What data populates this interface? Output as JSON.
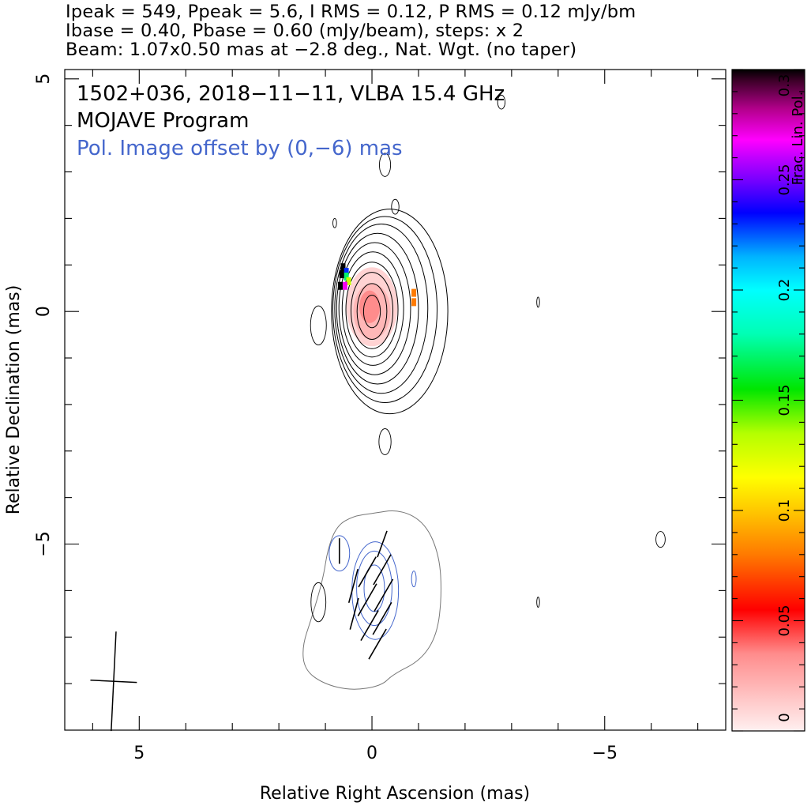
{
  "header": {
    "line1": "Ipeak = 549, Ppeak = 5.6, I RMS = 0.12, P RMS = 0.12 mJy/bm",
    "line2": "Ibase = 0.40, Pbase = 0.60 (mJy/beam), steps: x 2",
    "line3": "Beam: 1.07x0.50 mas at −2.8 deg., Nat. Wgt. (no taper)"
  },
  "chart_data": {
    "type": "contour",
    "title": "1502+036, 2018−11−11, VLBA 15.4 GHz",
    "subtitle": "MOJAVE Program",
    "annotation": "Pol. Image offset by (0,−6) mas",
    "xlabel": "Relative Right Ascension (mas)",
    "ylabel": "Relative Declination (mas)",
    "xlim": [
      6.6,
      -7.6
    ],
    "ylim": [
      -9.0,
      5.2
    ],
    "x_ticks": [
      5,
      0,
      -5
    ],
    "x_tick_labels": [
      "5",
      "0",
      "−5"
    ],
    "y_ticks": [
      5,
      0,
      -5
    ],
    "y_tick_labels": [
      "5",
      "0",
      "−5"
    ],
    "x_minor_ticks": [
      6,
      4,
      3,
      2,
      1,
      -1,
      -2,
      -3,
      -4,
      -6,
      -7
    ],
    "y_minor_ticks": [
      4,
      3,
      2,
      1,
      -1,
      -2,
      -3,
      -4,
      -6,
      -7,
      -8
    ],
    "stokes_I": {
      "peak_mJy_per_beam": 549,
      "rms": 0.12,
      "base_level": 0.4,
      "level_step": 2,
      "center": [
        0.0,
        0.0
      ],
      "contours": [
        {
          "x": 0.0,
          "y": 0.0,
          "rx": 0.18,
          "ry": 0.35
        },
        {
          "x": 0.0,
          "y": 0.0,
          "rx": 0.32,
          "ry": 0.6
        },
        {
          "x": 0.0,
          "y": 0.02,
          "rx": 0.45,
          "ry": 0.82
        },
        {
          "x": 0.0,
          "y": 0.04,
          "rx": 0.56,
          "ry": 1.02
        },
        {
          "x": -0.02,
          "y": 0.06,
          "rx": 0.66,
          "ry": 1.22
        },
        {
          "x": -0.06,
          "y": 0.06,
          "rx": 0.77,
          "ry": 1.42
        },
        {
          "x": -0.12,
          "y": 0.06,
          "rx": 0.88,
          "ry": 1.62
        },
        {
          "x": -0.2,
          "y": 0.06,
          "rx": 1.0,
          "ry": 1.82
        },
        {
          "x": -0.28,
          "y": 0.04,
          "rx": 1.12,
          "ry": 2.0
        },
        {
          "x": -0.38,
          "y": 0.0,
          "rx": 1.25,
          "ry": 2.2
        }
      ],
      "noise_islands": [
        {
          "x": 1.15,
          "y": -0.3,
          "rx": 0.17,
          "ry": 0.42
        },
        {
          "x": -0.28,
          "y": 3.15,
          "rx": 0.12,
          "ry": 0.25
        },
        {
          "x": -0.5,
          "y": 2.25,
          "rx": 0.08,
          "ry": 0.16
        },
        {
          "x": 0.8,
          "y": 1.9,
          "rx": 0.04,
          "ry": 0.1
        },
        {
          "x": -0.28,
          "y": -2.8,
          "rx": 0.13,
          "ry": 0.28
        },
        {
          "x": -3.57,
          "y": 0.2,
          "rx": 0.03,
          "ry": 0.11
        },
        {
          "x": -3.57,
          "y": -6.25,
          "rx": 0.03,
          "ry": 0.11
        },
        {
          "x": -6.2,
          "y": -4.9,
          "rx": 0.1,
          "ry": 0.17
        },
        {
          "x": -2.78,
          "y": 4.5,
          "rx": 0.08,
          "ry": 0.15
        },
        {
          "x": 1.15,
          "y": -6.25,
          "rx": 0.16,
          "ry": 0.42
        }
      ]
    },
    "polarization": {
      "peak_mJy_per_beam": 5.6,
      "rms": 0.12,
      "base_level": 0.6,
      "offset_mas": [
        0,
        -6
      ],
      "total_intensity_outline": [
        [
          0.05,
          -4.35
        ],
        [
          -0.6,
          -4.25
        ],
        [
          -1.15,
          -4.55
        ],
        [
          -1.45,
          -5.25
        ],
        [
          -1.5,
          -6.1
        ],
        [
          -1.4,
          -6.95
        ],
        [
          -1.05,
          -7.5
        ],
        [
          -0.45,
          -7.8
        ],
        [
          -0.2,
          -8.05
        ],
        [
          0.45,
          -8.15
        ],
        [
          1.05,
          -8.0
        ],
        [
          1.45,
          -7.7
        ],
        [
          1.5,
          -7.2
        ],
        [
          1.3,
          -6.6
        ],
        [
          1.05,
          -5.75
        ],
        [
          0.95,
          -5.1
        ],
        [
          0.75,
          -4.6
        ],
        [
          0.4,
          -4.4
        ]
      ],
      "contours": [
        {
          "x": -0.05,
          "y": -5.95,
          "rx": 0.22,
          "ry": 0.5
        },
        {
          "x": -0.05,
          "y": -5.95,
          "rx": 0.38,
          "ry": 0.8
        },
        {
          "x": -0.07,
          "y": -6.0,
          "rx": 0.5,
          "ry": 1.05
        },
        {
          "x": 0.7,
          "y": -5.2,
          "rx": 0.22,
          "ry": 0.38
        },
        {
          "x": -0.9,
          "y": -5.75,
          "rx": 0.05,
          "ry": 0.17
        }
      ],
      "evpa_vectors": [
        {
          "x": 0.7,
          "y": -5.15,
          "len": 0.55,
          "angle_deg": 0
        },
        {
          "x": 0.4,
          "y": -5.9,
          "len": 0.75,
          "angle_deg": -15
        },
        {
          "x": 0.38,
          "y": -6.5,
          "len": 0.7,
          "angle_deg": -15
        },
        {
          "x": 0.1,
          "y": -5.6,
          "len": 0.75,
          "angle_deg": -30
        },
        {
          "x": 0.1,
          "y": -6.2,
          "len": 0.8,
          "angle_deg": -30
        },
        {
          "x": 0.05,
          "y": -6.75,
          "len": 0.75,
          "angle_deg": -30
        },
        {
          "x": -0.22,
          "y": -5.55,
          "len": 0.75,
          "angle_deg": -30
        },
        {
          "x": -0.25,
          "y": -6.1,
          "len": 0.8,
          "angle_deg": -30
        },
        {
          "x": -0.22,
          "y": -6.6,
          "len": 0.8,
          "angle_deg": -30
        },
        {
          "x": -0.22,
          "y": -5.0,
          "len": 0.6,
          "angle_deg": -20
        },
        {
          "x": -0.12,
          "y": -7.15,
          "len": 0.75,
          "angle_deg": -30
        }
      ]
    },
    "frac_pol_map": [
      {
        "x": 0.0,
        "y": 0.1,
        "rx": 0.55,
        "ry": 0.85,
        "value": 0.01
      },
      {
        "x": 0.0,
        "y": 0.0,
        "rx": 0.4,
        "ry": 0.6,
        "value": 0.02
      },
      {
        "x": 0.05,
        "y": 0.1,
        "rx": 0.22,
        "ry": 0.35,
        "value": 0.035
      }
    ],
    "frac_pol_pixels": [
      {
        "x": 0.62,
        "y": 0.95,
        "value": 0.3
      },
      {
        "x": 0.55,
        "y": 0.85,
        "value": 0.23
      },
      {
        "x": 0.55,
        "y": 0.75,
        "value": 0.17
      },
      {
        "x": 0.5,
        "y": 0.65,
        "value": 0.13
      },
      {
        "x": 0.58,
        "y": 0.55,
        "value": 0.27
      },
      {
        "x": 0.68,
        "y": 0.55,
        "value": 0.3
      },
      {
        "x": 0.65,
        "y": 0.8,
        "value": 0.3
      },
      {
        "x": -0.9,
        "y": 0.4,
        "value": 0.08
      },
      {
        "x": -0.9,
        "y": 0.2,
        "value": 0.08
      }
    ],
    "beam": {
      "major_mas": 1.07,
      "minor_mas": 0.5,
      "pa_deg": -2.8,
      "x": 5.55,
      "y": -7.95
    },
    "colorbar": {
      "label": "Frac. Lin. Pol.",
      "range": [
        0,
        0.3
      ],
      "ticks": [
        0,
        0.05,
        0.1,
        0.15,
        0.2,
        0.25,
        0.3
      ],
      "tick_labels": [
        "0",
        "0.05",
        "0.1",
        "0.15",
        "0.2",
        "0.25",
        "0.3"
      ],
      "colormap": [
        [
          0.0,
          "#fff0f0"
        ],
        [
          0.035,
          "#ff8c8c"
        ],
        [
          0.055,
          "#ff0000"
        ],
        [
          0.08,
          "#ff7a00"
        ],
        [
          0.1,
          "#ffc800"
        ],
        [
          0.115,
          "#ffff00"
        ],
        [
          0.135,
          "#b4ff00"
        ],
        [
          0.155,
          "#00e600"
        ],
        [
          0.18,
          "#00ffb4"
        ],
        [
          0.2,
          "#00ffff"
        ],
        [
          0.215,
          "#00b4ff"
        ],
        [
          0.235,
          "#0000ff"
        ],
        [
          0.25,
          "#7800ff"
        ],
        [
          0.26,
          "#c000ff"
        ],
        [
          0.268,
          "#ff00ff"
        ],
        [
          0.282,
          "#b4008c"
        ],
        [
          0.295,
          "#3c0028"
        ],
        [
          0.3,
          "#000000"
        ]
      ]
    },
    "colors": {
      "stokes_I": "#000000",
      "pol": "#4466cc",
      "outline": "#777777",
      "annotation": "#4466cc"
    }
  }
}
